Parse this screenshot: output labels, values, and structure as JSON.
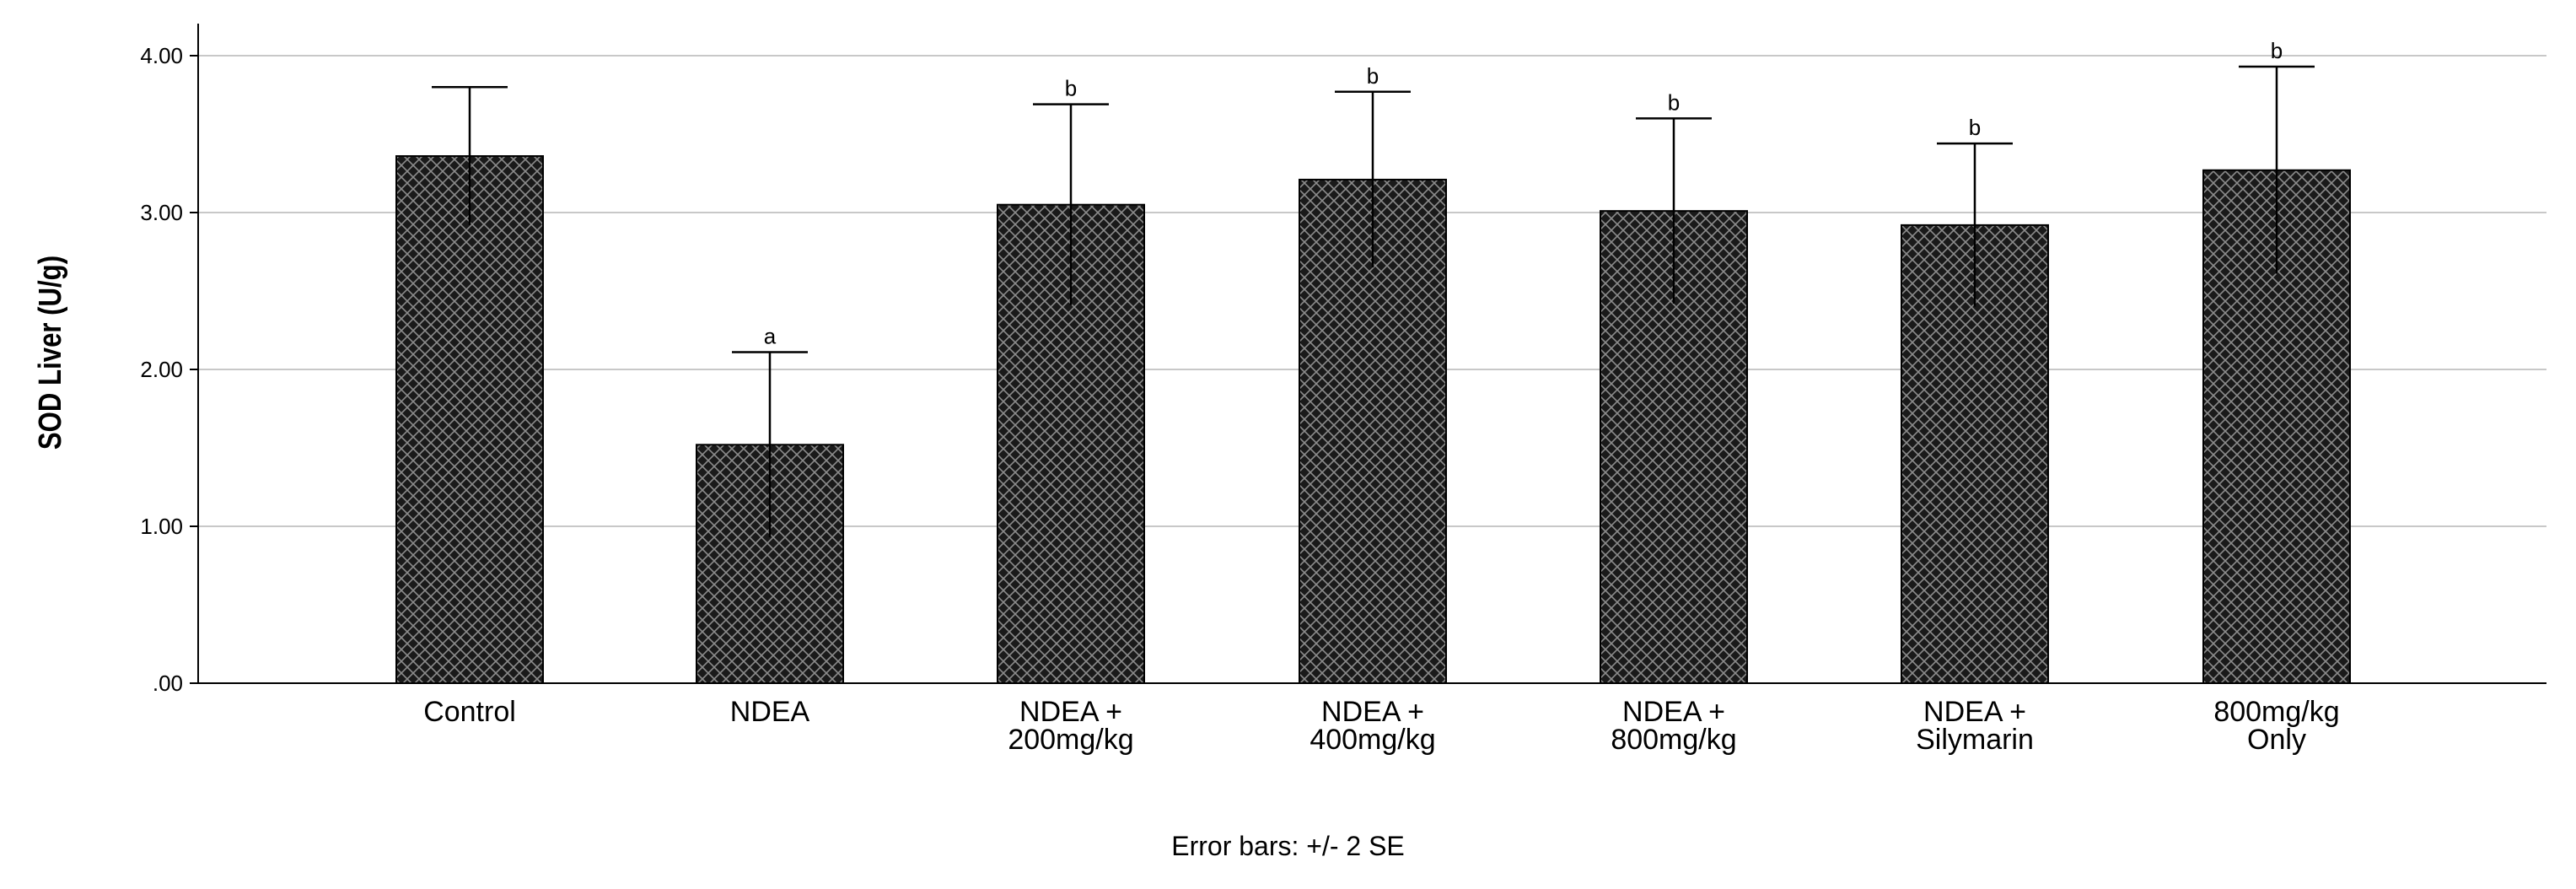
{
  "chart_data": {
    "type": "bar",
    "ylabel": "SOD Liver (U/g)",
    "ylim": [
      0,
      4.2
    ],
    "yticks": [
      ".00",
      "1.00",
      "2.00",
      "3.00",
      "4.00"
    ],
    "ytick_values": [
      0,
      1,
      2,
      3,
      4
    ],
    "grid": true,
    "categories": [
      [
        "Control"
      ],
      [
        "NDEA"
      ],
      [
        "NDEA +",
        "200mg/kg"
      ],
      [
        "NDEA +",
        "400mg/kg"
      ],
      [
        "NDEA +",
        "800mg/kg"
      ],
      [
        "NDEA +",
        "Silymarin"
      ],
      [
        "800mg/kg",
        "Only"
      ]
    ],
    "values": [
      3.36,
      1.52,
      3.05,
      3.21,
      3.01,
      2.92,
      3.27
    ],
    "error_upper": [
      3.8,
      2.11,
      3.69,
      3.77,
      3.6,
      3.44,
      3.93
    ],
    "error_lower": [
      2.92,
      0.93,
      2.41,
      2.65,
      2.42,
      2.4,
      2.61
    ],
    "significance": [
      "",
      "a",
      "b",
      "b",
      "b",
      "b",
      "b"
    ],
    "bar_color": "#1a1a1a",
    "pattern_color": "#8c8c8c",
    "grid_color": "#c8c8c8"
  },
  "footnote": "Error bars: +/- 2 SE"
}
